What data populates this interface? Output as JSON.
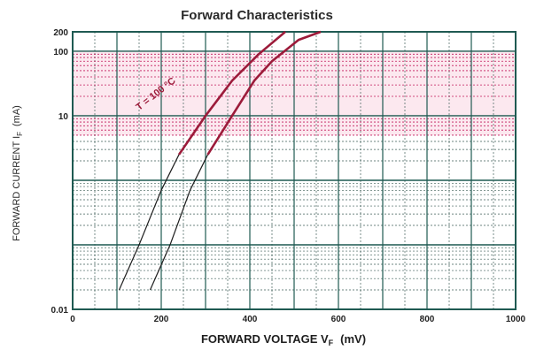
{
  "chart_data": {
    "type": "line",
    "title": "Forward Characteristics",
    "xlabel": "FORWARD VOLTAGE  V",
    "xlabel_sub": "F",
    "xlabel_unit": "(mV)",
    "ylabel": "FORWARD CURRENT  I",
    "ylabel_sub": "F",
    "ylabel_unit": "(mA)",
    "xlim": [
      0,
      1000
    ],
    "ylim": [
      0.01,
      200
    ],
    "y_scale": "log",
    "grid": true,
    "x_ticks": [
      {
        "value": 0,
        "label": "0"
      },
      {
        "value": 200,
        "label": "200"
      },
      {
        "value": 400,
        "label": "400"
      },
      {
        "value": 600,
        "label": "600"
      },
      {
        "value": 800,
        "label": "800"
      },
      {
        "value": 1000,
        "label": "1000"
      }
    ],
    "y_ticks": [
      {
        "value": 200,
        "label": "200"
      },
      {
        "value": 100,
        "label": "100"
      },
      {
        "value": 10,
        "label": "10"
      },
      {
        "value": 0.01,
        "label": "0.01"
      }
    ],
    "highlight_band": {
      "from": 5,
      "to": 100,
      "color": "#e8437a"
    },
    "series": [
      {
        "name": "",
        "color": "#9c1b3a",
        "x": [
          105,
          150,
          200,
          240,
          300,
          360,
          420,
          480
        ],
        "y": [
          0.02,
          0.1,
          0.7,
          2.5,
          10,
          35,
          90,
          200
        ]
      },
      {
        "name": "",
        "color": "#9c1b3a",
        "x": [
          175,
          220,
          265,
          305,
          360,
          410,
          450,
          510,
          560
        ],
        "y": [
          0.02,
          0.1,
          0.7,
          2.5,
          10,
          35,
          70,
          150,
          200
        ]
      }
    ],
    "annotations": [
      {
        "text": "T = 100 °C",
        "x": 150,
        "y": 12,
        "rotate": -38
      }
    ],
    "colors": {
      "grid": "#1f5a52",
      "curve": "#9c1b3a",
      "band": "#e8437a"
    }
  }
}
